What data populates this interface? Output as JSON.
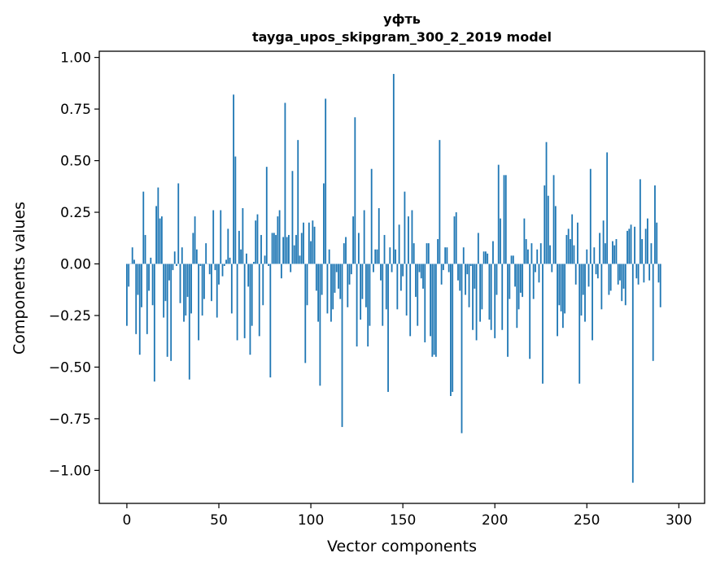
{
  "chart_data": {
    "type": "bar",
    "title": "уфть",
    "subtitle": "tayga_upos_skipgram_300_2_2019 model",
    "xlabel": "Vector components",
    "ylabel": "Components values",
    "xlim": [
      -15,
      314
    ],
    "ylim": [
      -1.16,
      1.03
    ],
    "xticks": [
      0,
      50,
      100,
      150,
      200,
      250,
      300
    ],
    "xtick_labels": [
      "0",
      "50",
      "100",
      "150",
      "200",
      "250",
      "300"
    ],
    "yticks": [
      -1.0,
      -0.75,
      -0.5,
      -0.25,
      0.0,
      0.25,
      0.5,
      0.75,
      1.0
    ],
    "ytick_labels": [
      "−1.00",
      "−0.75",
      "−0.50",
      "−0.25",
      "0.00",
      "0.25",
      "0.50",
      "0.75",
      "1.00"
    ],
    "grid": false,
    "bar_color": "#1f77b4",
    "series": [
      {
        "name": "",
        "values": [
          -0.3,
          -0.11,
          0.0,
          0.08,
          0.02,
          -0.34,
          -0.15,
          -0.44,
          -0.21,
          0.35,
          0.14,
          -0.34,
          -0.13,
          0.03,
          -0.2,
          -0.57,
          0.28,
          0.37,
          0.22,
          0.23,
          -0.26,
          -0.18,
          -0.45,
          -0.08,
          -0.47,
          -0.03,
          0.06,
          -0.01,
          0.39,
          -0.19,
          0.08,
          -0.28,
          -0.25,
          -0.16,
          -0.56,
          -0.24,
          0.15,
          0.23,
          0.07,
          -0.37,
          -0.01,
          -0.25,
          -0.17,
          0.1,
          0.0,
          -0.05,
          -0.18,
          0.26,
          -0.03,
          -0.26,
          -0.1,
          0.26,
          -0.06,
          -0.01,
          0.02,
          0.17,
          0.03,
          -0.24,
          0.82,
          0.52,
          -0.37,
          0.16,
          0.07,
          0.27,
          -0.36,
          0.05,
          -0.11,
          -0.44,
          -0.3,
          0.01,
          0.21,
          0.24,
          -0.35,
          0.14,
          -0.2,
          0.04,
          0.47,
          -0.01,
          -0.55,
          0.15,
          0.15,
          0.14,
          0.23,
          0.26,
          -0.07,
          0.13,
          0.78,
          0.13,
          0.14,
          -0.04,
          0.45,
          0.09,
          0.14,
          0.6,
          0.04,
          0.15,
          0.2,
          -0.48,
          -0.2,
          0.2,
          0.11,
          0.21,
          0.18,
          -0.13,
          -0.28,
          -0.59,
          -0.15,
          0.39,
          0.8,
          -0.24,
          0.07,
          -0.28,
          -0.22,
          -0.14,
          -0.04,
          -0.12,
          -0.17,
          -0.79,
          0.1,
          0.13,
          -0.21,
          -0.1,
          -0.05,
          0.23,
          0.71,
          -0.4,
          0.15,
          -0.27,
          -0.17,
          0.26,
          -0.21,
          -0.4,
          -0.3,
          0.46,
          -0.04,
          0.07,
          0.07,
          0.27,
          -0.08,
          -0.3,
          0.14,
          -0.22,
          -0.62,
          0.08,
          -0.04,
          0.92,
          0.07,
          -0.22,
          0.19,
          -0.13,
          -0.06,
          0.35,
          -0.25,
          0.23,
          -0.35,
          0.26,
          0.1,
          -0.16,
          -0.3,
          -0.04,
          -0.07,
          -0.12,
          -0.38,
          0.1,
          0.1,
          -0.35,
          -0.45,
          -0.44,
          -0.45,
          0.12,
          0.6,
          -0.1,
          -0.03,
          0.08,
          0.08,
          -0.04,
          -0.64,
          -0.62,
          0.23,
          0.25,
          -0.08,
          -0.13,
          -0.82,
          0.08,
          -0.15,
          -0.05,
          -0.21,
          -0.01,
          -0.32,
          -0.12,
          -0.37,
          0.15,
          -0.28,
          -0.22,
          0.06,
          0.06,
          0.05,
          -0.27,
          -0.32,
          0.11,
          -0.36,
          -0.15,
          0.48,
          0.22,
          -0.32,
          0.43,
          0.43,
          -0.45,
          -0.17,
          0.04,
          0.04,
          -0.11,
          -0.31,
          -0.22,
          -0.14,
          -0.16,
          0.22,
          0.12,
          0.07,
          -0.46,
          0.1,
          -0.17,
          -0.04,
          0.07,
          -0.09,
          0.1,
          -0.58,
          0.38,
          0.59,
          0.33,
          0.09,
          -0.04,
          0.43,
          0.28,
          -0.35,
          -0.2,
          -0.23,
          -0.31,
          -0.24,
          0.14,
          0.17,
          0.12,
          0.24,
          0.09,
          -0.1,
          0.2,
          -0.58,
          -0.25,
          -0.15,
          -0.28,
          0.07,
          -0.11,
          0.46,
          -0.37,
          0.08,
          -0.05,
          -0.07,
          0.15,
          -0.22,
          0.21,
          0.1,
          0.54,
          -0.15,
          -0.13,
          0.11,
          0.09,
          0.12,
          -0.1,
          -0.08,
          -0.18,
          -0.12,
          -0.2,
          0.16,
          0.17,
          0.19,
          -1.06,
          0.18,
          -0.07,
          -0.1,
          0.41,
          0.12,
          -0.09,
          0.17,
          0.22,
          -0.08,
          0.1,
          -0.47,
          0.38,
          0.2,
          -0.09,
          -0.21
        ]
      }
    ]
  }
}
